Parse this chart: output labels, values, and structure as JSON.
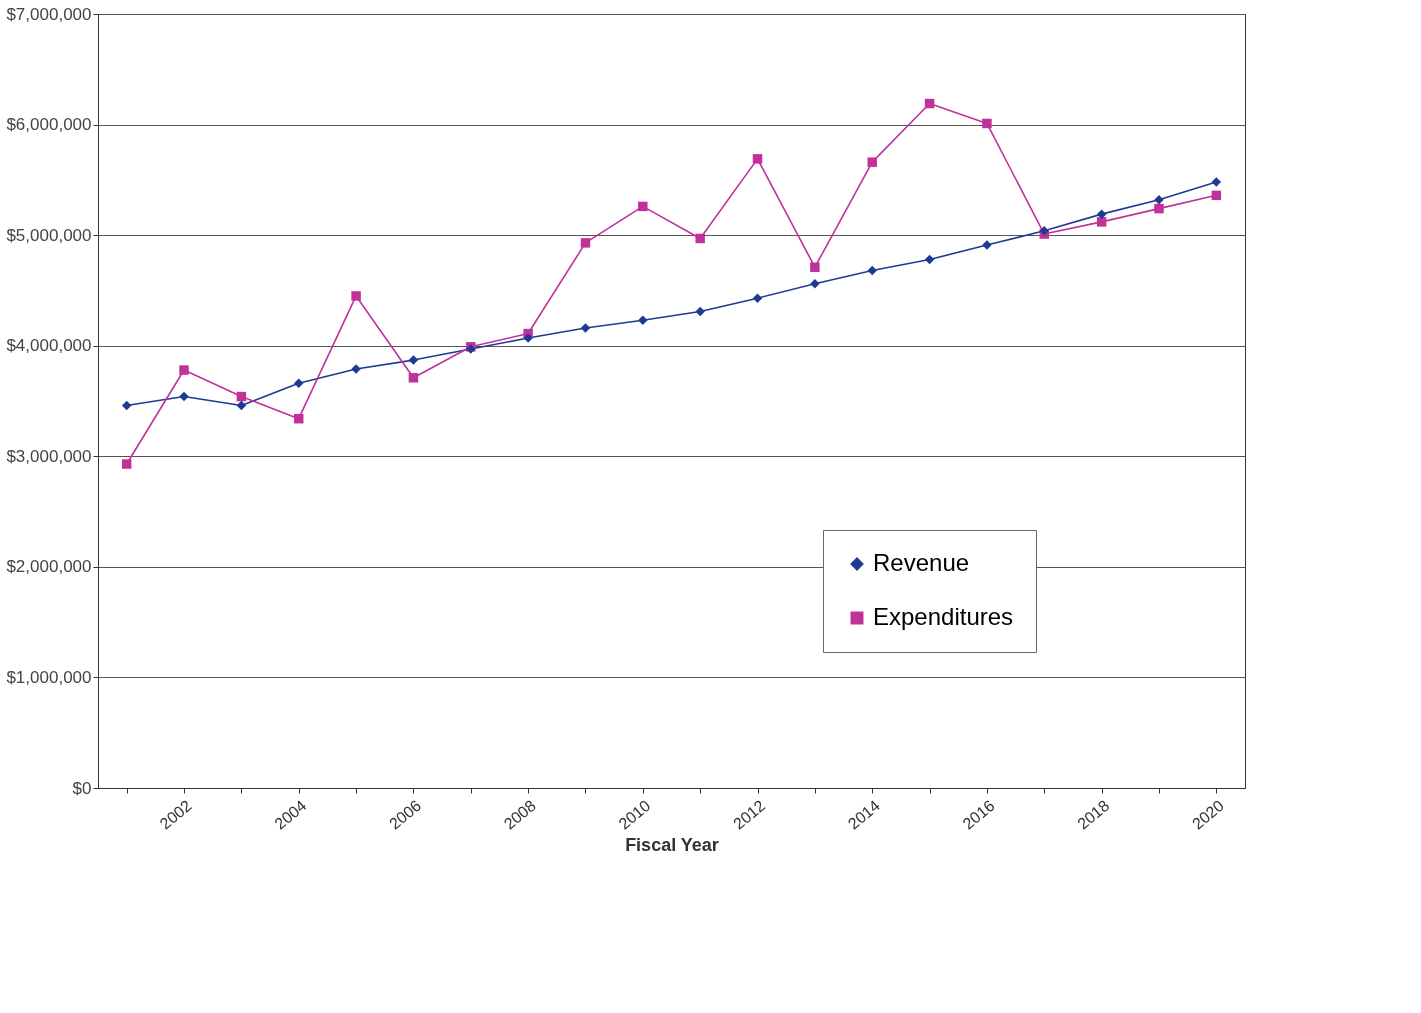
{
  "chart_data": {
    "type": "line",
    "xlabel": "Fiscal Year",
    "categories": [
      null,
      "2002",
      null,
      "2004",
      null,
      "2006",
      null,
      "2008",
      null,
      "2010",
      null,
      "2012",
      null,
      "2014",
      null,
      "2016",
      null,
      "2018",
      null,
      "2020"
    ],
    "series": [
      {
        "name": "Revenue",
        "color": "#1f3a93",
        "marker": "diamond",
        "values": [
          3460000,
          3540000,
          3460000,
          3660000,
          3790000,
          3870000,
          3970000,
          4070000,
          4160000,
          4230000,
          4310000,
          4430000,
          4560000,
          4680000,
          4780000,
          4910000,
          5040000,
          5190000,
          5320000,
          5480000
        ]
      },
      {
        "name": "Expenditures",
        "color": "#c0329a",
        "marker": "square",
        "values": [
          2930000,
          3780000,
          3540000,
          3340000,
          4450000,
          3710000,
          3990000,
          4110000,
          4930000,
          5260000,
          4970000,
          5690000,
          4710000,
          5660000,
          6190000,
          6010000,
          5010000,
          5120000,
          5240000,
          5360000
        ]
      }
    ],
    "ylim": [
      0,
      7000000
    ],
    "yticks": [
      {
        "value": 0,
        "label": "$0"
      },
      {
        "value": 1000000,
        "label": "$1,000,000"
      },
      {
        "value": 2000000,
        "label": "$2,000,000"
      },
      {
        "value": 3000000,
        "label": "$3,000,000"
      },
      {
        "value": 4000000,
        "label": "$4,000,000"
      },
      {
        "value": 5000000,
        "label": "$5,000,000"
      },
      {
        "value": 6000000,
        "label": "$6,000,000"
      },
      {
        "value": 7000000,
        "label": "$7,000,000"
      }
    ],
    "grid": "y",
    "legend": "right",
    "line_style": "solid"
  }
}
